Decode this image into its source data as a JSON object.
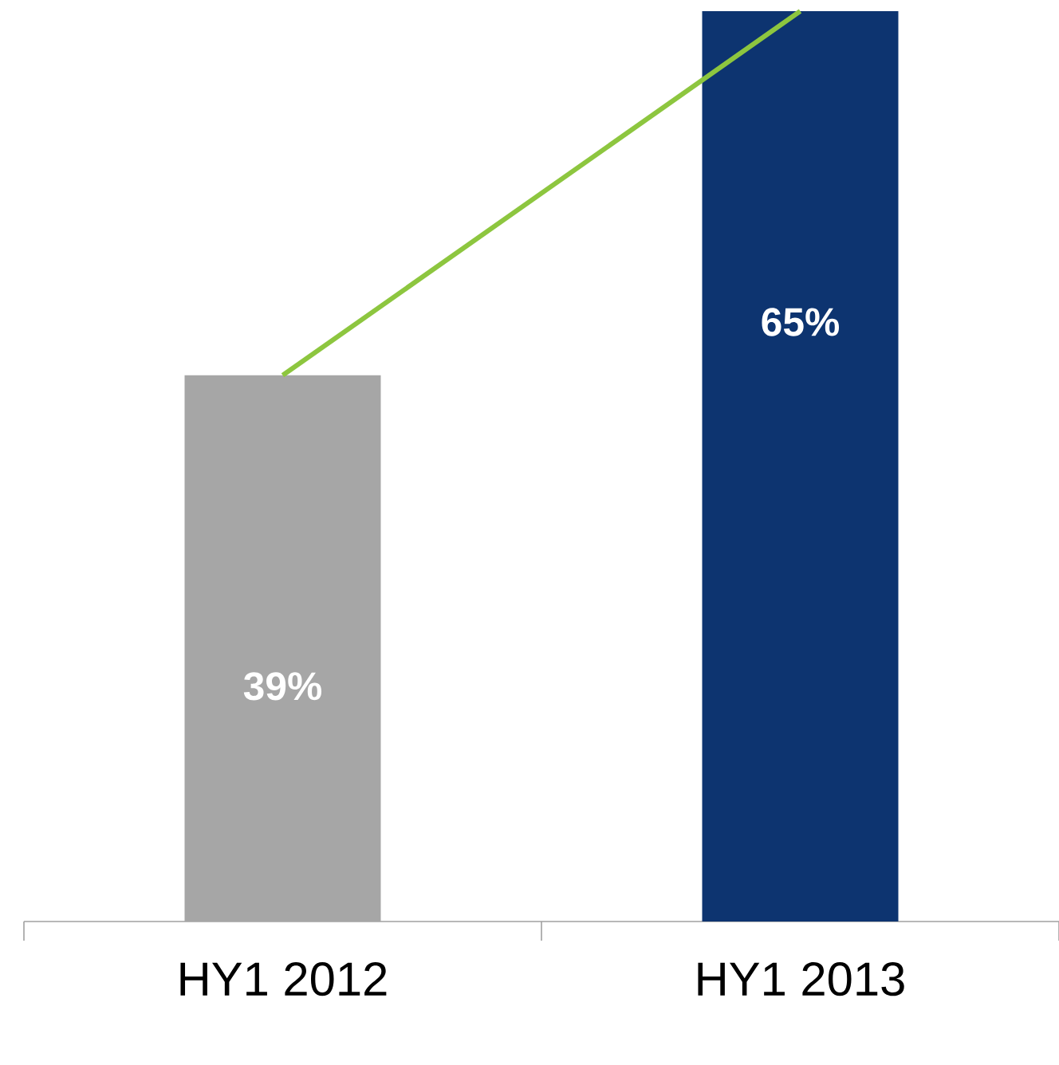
{
  "chart_data": {
    "type": "bar",
    "categories": [
      "HY1 2012",
      "HY1 2013"
    ],
    "series": [
      {
        "values": [
          39,
          65
        ],
        "colors": [
          "#a6a6a6",
          "#0d3470"
        ],
        "value_labels": [
          "39%",
          "65%"
        ]
      },
      {
        "type": "line",
        "values": [
          39,
          65
        ],
        "color": "#8dc63f"
      }
    ]
  }
}
